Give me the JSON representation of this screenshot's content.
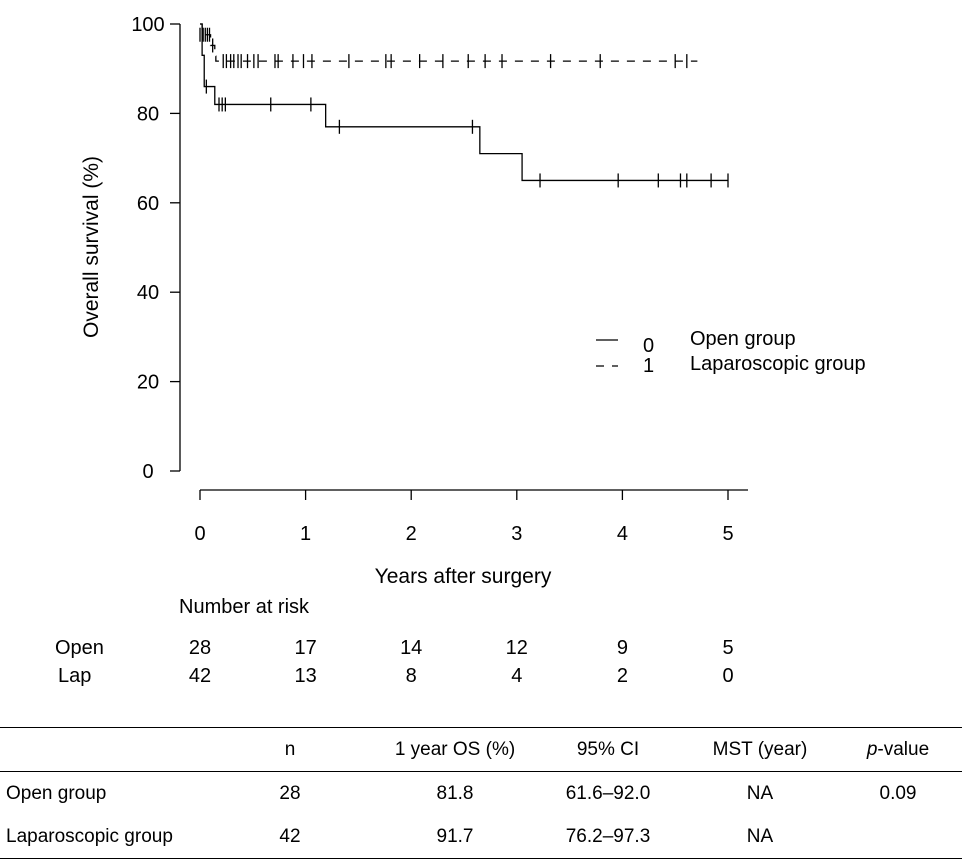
{
  "chart_data": {
    "type": "line",
    "subtype": "kaplan-meier step",
    "title": "",
    "xlabel": "Years after surgery",
    "ylabel": "Overall survival (%)",
    "xlim": [
      0,
      5
    ],
    "ylim": [
      0,
      100
    ],
    "x_ticks": [
      0,
      1,
      2,
      3,
      4,
      5
    ],
    "y_ticks": [
      0,
      20,
      40,
      60,
      80,
      100
    ],
    "grid": false,
    "legend_position": "right-middle",
    "series": [
      {
        "name": "Open group",
        "legend_code": "0",
        "line_style": "solid",
        "steps": [
          {
            "x": 0.0,
            "y": 100
          },
          {
            "x": 0.02,
            "y": 93
          },
          {
            "x": 0.04,
            "y": 86
          },
          {
            "x": 0.14,
            "y": 82
          },
          {
            "x": 1.19,
            "y": 77
          },
          {
            "x": 2.65,
            "y": 71
          },
          {
            "x": 3.05,
            "y": 65
          },
          {
            "x": 5.0,
            "y": 65
          }
        ],
        "censored": [
          {
            "x": 0.06,
            "y": 86
          },
          {
            "x": 0.18,
            "y": 82
          },
          {
            "x": 0.21,
            "y": 82
          },
          {
            "x": 0.24,
            "y": 82
          },
          {
            "x": 0.67,
            "y": 82
          },
          {
            "x": 1.05,
            "y": 82
          },
          {
            "x": 1.32,
            "y": 77
          },
          {
            "x": 2.58,
            "y": 77
          },
          {
            "x": 3.22,
            "y": 65
          },
          {
            "x": 3.96,
            "y": 65
          },
          {
            "x": 4.34,
            "y": 65
          },
          {
            "x": 4.55,
            "y": 65
          },
          {
            "x": 4.61,
            "y": 65
          },
          {
            "x": 4.84,
            "y": 65
          },
          {
            "x": 5.0,
            "y": 65
          }
        ]
      },
      {
        "name": "Laparoscopic group",
        "legend_code": "1",
        "line_style": "dashed",
        "steps": [
          {
            "x": 0.0,
            "y": 100
          },
          {
            "x": 0.02,
            "y": 97.6
          },
          {
            "x": 0.1,
            "y": 95.2
          },
          {
            "x": 0.14,
            "y": 92.8
          },
          {
            "x": 0.15,
            "y": 91.7
          },
          {
            "x": 4.71,
            "y": 91.7
          }
        ],
        "censored": [
          {
            "x": 0.0,
            "y": 97.6
          },
          {
            "x": 0.03,
            "y": 97.6
          },
          {
            "x": 0.05,
            "y": 97.6
          },
          {
            "x": 0.07,
            "y": 97.6
          },
          {
            "x": 0.09,
            "y": 97.6
          },
          {
            "x": 0.12,
            "y": 95.2
          },
          {
            "x": 0.22,
            "y": 91.7
          },
          {
            "x": 0.25,
            "y": 91.7
          },
          {
            "x": 0.29,
            "y": 91.7
          },
          {
            "x": 0.32,
            "y": 91.7
          },
          {
            "x": 0.36,
            "y": 91.7
          },
          {
            "x": 0.39,
            "y": 91.7
          },
          {
            "x": 0.45,
            "y": 91.7
          },
          {
            "x": 0.51,
            "y": 91.7
          },
          {
            "x": 0.55,
            "y": 91.7
          },
          {
            "x": 0.71,
            "y": 91.7
          },
          {
            "x": 0.74,
            "y": 91.7
          },
          {
            "x": 0.88,
            "y": 91.7
          },
          {
            "x": 0.98,
            "y": 91.7
          },
          {
            "x": 1.06,
            "y": 91.7
          },
          {
            "x": 1.41,
            "y": 91.7
          },
          {
            "x": 1.76,
            "y": 91.7
          },
          {
            "x": 1.81,
            "y": 91.7
          },
          {
            "x": 2.08,
            "y": 91.7
          },
          {
            "x": 2.3,
            "y": 91.7
          },
          {
            "x": 2.54,
            "y": 91.7
          },
          {
            "x": 2.7,
            "y": 91.7
          },
          {
            "x": 2.86,
            "y": 91.7
          },
          {
            "x": 3.32,
            "y": 91.7
          },
          {
            "x": 3.79,
            "y": 91.7
          },
          {
            "x": 4.5,
            "y": 91.7
          },
          {
            "x": 4.61,
            "y": 91.7
          }
        ]
      }
    ]
  },
  "risk_table": {
    "title": "Number at risk",
    "rows": [
      {
        "label": "Open",
        "values": [
          "28",
          "17",
          "14",
          "12",
          "9",
          "5"
        ]
      },
      {
        "label": "Lap",
        "values": [
          "42",
          "13",
          "8",
          "4",
          "2",
          "0"
        ]
      }
    ]
  },
  "stats_table": {
    "headers": [
      "",
      "n",
      "1 year OS (%)",
      "95% CI",
      "MST (year)"
    ],
    "p_header_italic": "p",
    "p_header_rest": "-value",
    "rows": [
      {
        "name": "Open group",
        "n": "28",
        "os": "81.8",
        "ci": "61.6–92.0",
        "mst": "NA",
        "p": "0.09"
      },
      {
        "name": "Laparoscopic group",
        "n": "42",
        "os": "91.7",
        "ci": "76.2–97.3",
        "mst": "NA",
        "p": ""
      }
    ]
  }
}
